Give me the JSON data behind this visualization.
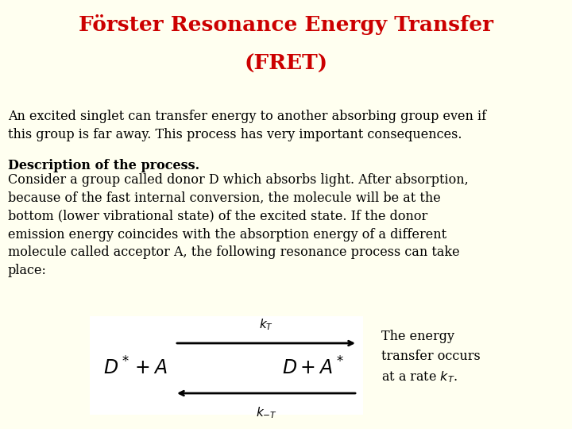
{
  "bg_color": "#FFFFF0",
  "title_line1": "Förster Resonance Energy Transfer",
  "title_line2": "(FRET)",
  "title_color": "#CC0000",
  "title_fontsize": 19,
  "body_color": "#000000",
  "body_fontsize": 11.5,
  "para1": "An excited singlet can transfer energy to another absorbing group even if\nthis group is far away. This process has very important consequences.",
  "bold_line": "Description of the process.",
  "para2": "Consider a group called donor D which absorbs light. After absorption,\nbecause of the fast internal conversion, the molecule will be at the\nbottom (lower vibrational state) of the excited state. If the donor\nemission energy coincides with the absorption energy of a different\nmolecule called acceptor A, the following resonance process can take\nplace:",
  "reaction_box_color": "#FFFFFF",
  "arrow_color": "#000000",
  "side_text": "The energy\ntransfer occurs\nat a rate ",
  "side_kt": "$k_T$."
}
